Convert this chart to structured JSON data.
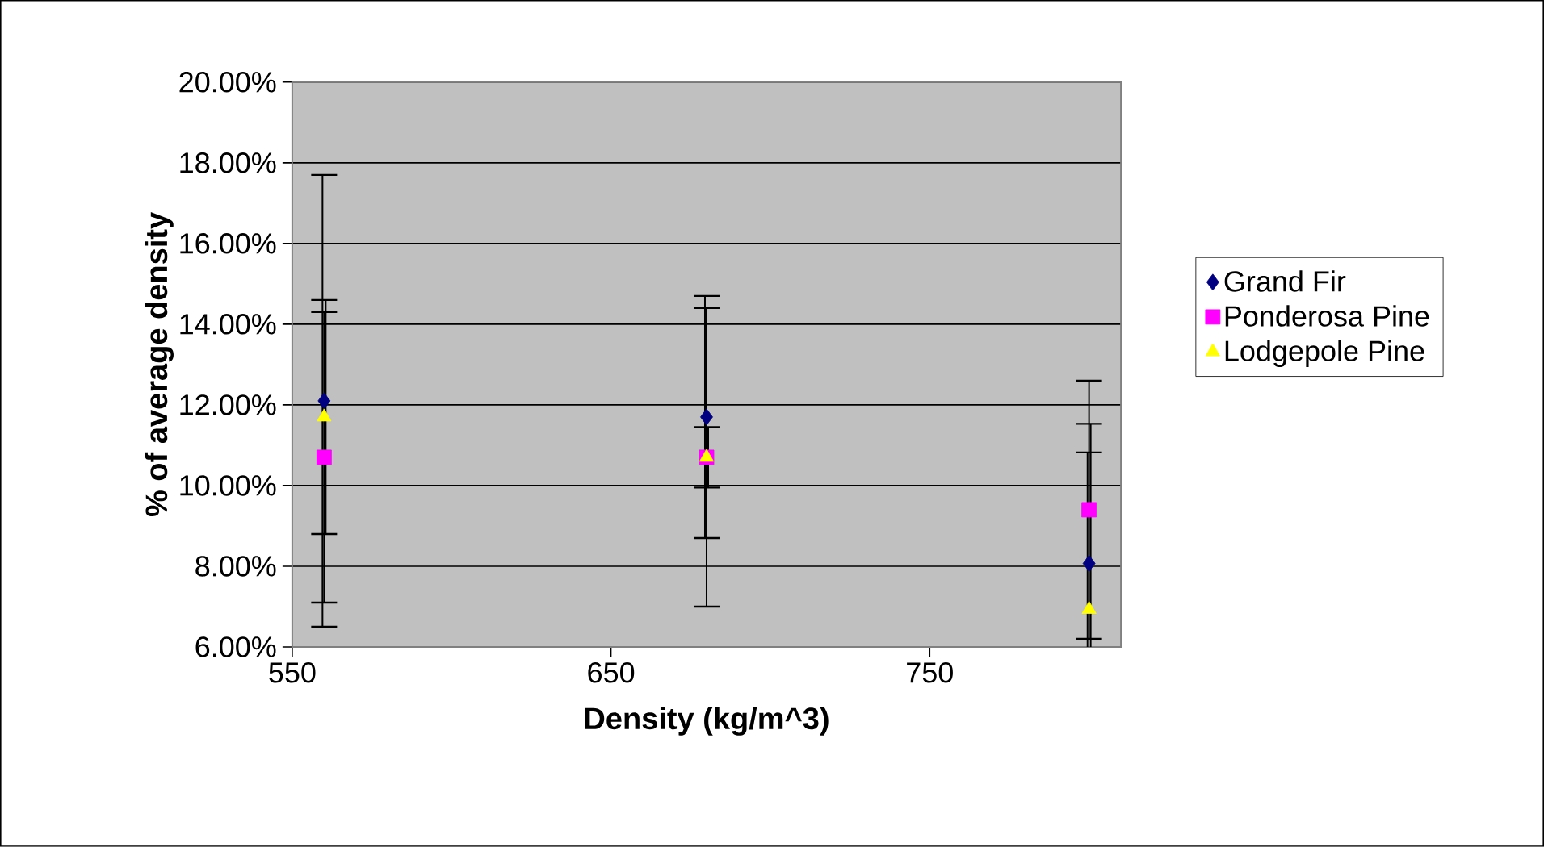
{
  "chart_data": {
    "type": "scatter",
    "xlabel": "Density (kg/m^3)",
    "ylabel": "% of average density",
    "x": [
      560,
      680,
      800
    ],
    "series": [
      {
        "name": "Grand Fir",
        "color": "#000080",
        "marker": "diamond",
        "values": [
          12.1,
          11.7,
          8.07
        ],
        "errors": [
          5.6,
          3.0,
          [
            6,
            10.82
          ]
        ]
      },
      {
        "name": "Ponderosa Pine",
        "color": "#ff00ff",
        "marker": "square",
        "values": [
          10.7,
          10.7,
          9.4
        ],
        "errors": [
          3.6,
          3.7,
          3.2
        ]
      },
      {
        "name": "Lodgepole Pine",
        "color": "#ffff00",
        "marker": "triangle",
        "values": [
          11.7,
          10.7,
          6.93
        ],
        "errors": [
          2.9,
          0.75,
          [
            6,
            11.53
          ]
        ]
      }
    ],
    "xlim": [
      550,
      810
    ],
    "xticks": [
      550,
      650,
      750
    ],
    "ylim": [
      6,
      20
    ],
    "yticks": [
      {
        "value": 6,
        "label": "6.00%"
      },
      {
        "value": 8,
        "label": "8.00%"
      },
      {
        "value": 10,
        "label": "10.00%"
      },
      {
        "value": 12,
        "label": "12.00%"
      },
      {
        "value": 14,
        "label": "14.00%"
      },
      {
        "value": 16,
        "label": "16.00%"
      },
      {
        "value": 18,
        "label": "18.00%"
      },
      {
        "value": 20,
        "label": "20.00%"
      }
    ],
    "grid": "y",
    "legend": "right"
  }
}
